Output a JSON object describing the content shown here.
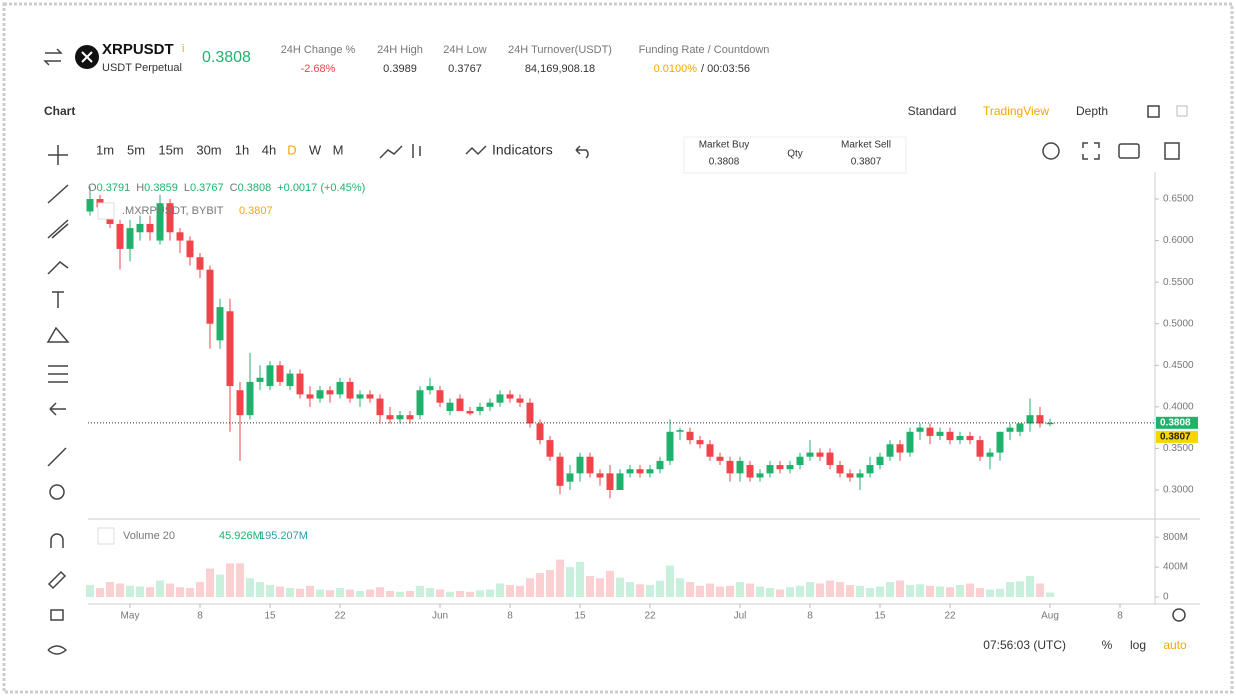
{
  "header": {
    "symbol": "XRPUSDT",
    "info": "i",
    "contract": "USDT Perpetual",
    "price": "0.3808",
    "stats": [
      {
        "label": "24H Change %",
        "value": "-2.68%"
      },
      {
        "label": "24H High",
        "value": "0.3989"
      },
      {
        "label": "24H Low",
        "value": "0.3767"
      },
      {
        "label": "24H Turnover(USDT)",
        "value": "84,169,908.18"
      }
    ],
    "funding": {
      "label": "Funding Rate / Countdown",
      "rate": "0.0100%",
      "countdown": "/ 00:03:56"
    }
  },
  "nav": {
    "section": "Chart",
    "tabs": [
      "Standard",
      "TradingView",
      "Depth"
    ]
  },
  "toolbar": {
    "intervals": [
      "1m",
      "5m",
      "15m",
      "30m",
      "1h",
      "4h",
      "D",
      "W",
      "M"
    ],
    "indicators": "Indicators"
  },
  "market": {
    "buy_label": "Market Buy",
    "buy": "0.3808",
    "qty": "Qty",
    "sell_label": "Market Sell",
    "sell": "0.3807"
  },
  "legend": {
    "ohlc": [
      {
        "label": "O",
        "value": "0.3791"
      },
      {
        "label": "H",
        "value": "0.3859"
      },
      {
        "label": "L",
        "value": "0.3767"
      },
      {
        "label": "C",
        "value": "0.3808"
      }
    ],
    "change": "+0.0017 (+0.45%)",
    "index": ".MXRPUSDT, BYBIT",
    "index_value": "0.3807"
  },
  "volume_legend": {
    "name": "Volume 20",
    "value1": "45.926M",
    "value2": "195.207M"
  },
  "footer": {
    "time": "07:56:03 (UTC)",
    "percent": "%",
    "log": "log",
    "auto": "auto"
  },
  "chart_data": {
    "type": "candlestick",
    "up_color": "#20b26c",
    "down_color": "#ef454a",
    "up_volume_color": "#c8f0dc",
    "down_volume_color": "#fbd0d2",
    "xlim": [
      -0.2,
      106.5
    ],
    "xticks": [
      {
        "value": 4,
        "label": "May"
      },
      {
        "value": 11,
        "label": "8"
      },
      {
        "value": 18,
        "label": "15"
      },
      {
        "value": 25,
        "label": "22"
      },
      {
        "value": 35,
        "label": "Jun"
      },
      {
        "value": 42,
        "label": "8"
      },
      {
        "value": 49,
        "label": "15"
      },
      {
        "value": 56,
        "label": "22"
      },
      {
        "value": 65,
        "label": "Jul"
      },
      {
        "value": 72,
        "label": "8"
      },
      {
        "value": 79,
        "label": "15"
      },
      {
        "value": 86,
        "label": "22"
      },
      {
        "value": 96,
        "label": "Aug"
      },
      {
        "value": 103,
        "label": "8"
      }
    ],
    "ylim": [
      0.2663,
      0.6825
    ],
    "yticks": [
      {
        "value": 0.3,
        "label": "0.3000"
      },
      {
        "value": 0.35,
        "label": "0.3500"
      },
      {
        "value": 0.4,
        "label": "0.4000"
      },
      {
        "value": 0.45,
        "label": "0.4500"
      },
      {
        "value": 0.5,
        "label": "0.5000"
      },
      {
        "value": 0.55,
        "label": "0.5500"
      },
      {
        "value": 0.6,
        "label": "0.6000"
      },
      {
        "value": 0.65,
        "label": "0.6500"
      }
    ],
    "last_price": {
      "value": 0.3808,
      "label": "0.3808"
    },
    "mark_price": {
      "value": 0.3807,
      "label": "0.3807"
    },
    "vlim": [
      0,
      1030
    ],
    "vticks": [
      0,
      {
        "value": 400,
        "label": "400M"
      },
      {
        "value": 800,
        "label": "800M"
      }
    ],
    "candles": [
      [
        0.635,
        0.665,
        0.63,
        0.65
      ],
      [
        0.65,
        0.655,
        0.63,
        0.64
      ],
      [
        0.64,
        0.645,
        0.615,
        0.62
      ],
      [
        0.62,
        0.625,
        0.565,
        0.59
      ],
      [
        0.59,
        0.625,
        0.575,
        0.615
      ],
      [
        0.61,
        0.63,
        0.6,
        0.62
      ],
      [
        0.62,
        0.63,
        0.6,
        0.61
      ],
      [
        0.6,
        0.655,
        0.595,
        0.645
      ],
      [
        0.645,
        0.65,
        0.6,
        0.61
      ],
      [
        0.61,
        0.615,
        0.585,
        0.6
      ],
      [
        0.6,
        0.605,
        0.57,
        0.58
      ],
      [
        0.58,
        0.585,
        0.555,
        0.565
      ],
      [
        0.565,
        0.57,
        0.47,
        0.5
      ],
      [
        0.48,
        0.53,
        0.47,
        0.52
      ],
      [
        0.515,
        0.53,
        0.37,
        0.425
      ],
      [
        0.42,
        0.43,
        0.335,
        0.39
      ],
      [
        0.39,
        0.465,
        0.385,
        0.43
      ],
      [
        0.43,
        0.45,
        0.42,
        0.435
      ],
      [
        0.425,
        0.455,
        0.42,
        0.45
      ],
      [
        0.45,
        0.455,
        0.425,
        0.43
      ],
      [
        0.425,
        0.445,
        0.42,
        0.44
      ],
      [
        0.44,
        0.445,
        0.41,
        0.415
      ],
      [
        0.415,
        0.425,
        0.4,
        0.41
      ],
      [
        0.41,
        0.425,
        0.405,
        0.42
      ],
      [
        0.42,
        0.425,
        0.405,
        0.415
      ],
      [
        0.415,
        0.435,
        0.41,
        0.43
      ],
      [
        0.43,
        0.435,
        0.405,
        0.41
      ],
      [
        0.41,
        0.42,
        0.4,
        0.415
      ],
      [
        0.415,
        0.42,
        0.405,
        0.41
      ],
      [
        0.41,
        0.415,
        0.38,
        0.39
      ],
      [
        0.39,
        0.4,
        0.38,
        0.385
      ],
      [
        0.385,
        0.395,
        0.38,
        0.39
      ],
      [
        0.39,
        0.395,
        0.38,
        0.385
      ],
      [
        0.39,
        0.425,
        0.385,
        0.42
      ],
      [
        0.42,
        0.435,
        0.415,
        0.425
      ],
      [
        0.42,
        0.425,
        0.4,
        0.405
      ],
      [
        0.395,
        0.41,
        0.39,
        0.405
      ],
      [
        0.41,
        0.415,
        0.395,
        0.395
      ],
      [
        0.395,
        0.4,
        0.39,
        0.392
      ],
      [
        0.395,
        0.405,
        0.39,
        0.4
      ],
      [
        0.4,
        0.41,
        0.395,
        0.405
      ],
      [
        0.405,
        0.42,
        0.4,
        0.415
      ],
      [
        0.415,
        0.42,
        0.405,
        0.41
      ],
      [
        0.41,
        0.415,
        0.4,
        0.405
      ],
      [
        0.405,
        0.41,
        0.375,
        0.38
      ],
      [
        0.38,
        0.385,
        0.355,
        0.36
      ],
      [
        0.36,
        0.365,
        0.335,
        0.34
      ],
      [
        0.34,
        0.345,
        0.295,
        0.305
      ],
      [
        0.31,
        0.33,
        0.3,
        0.32
      ],
      [
        0.32,
        0.345,
        0.31,
        0.34
      ],
      [
        0.34,
        0.345,
        0.315,
        0.32
      ],
      [
        0.32,
        0.325,
        0.305,
        0.315
      ],
      [
        0.32,
        0.33,
        0.29,
        0.3
      ],
      [
        0.3,
        0.325,
        0.3,
        0.32
      ],
      [
        0.32,
        0.33,
        0.315,
        0.325
      ],
      [
        0.325,
        0.33,
        0.315,
        0.32
      ],
      [
        0.32,
        0.33,
        0.315,
        0.325
      ],
      [
        0.325,
        0.34,
        0.32,
        0.335
      ],
      [
        0.335,
        0.385,
        0.33,
        0.37
      ],
      [
        0.37,
        0.375,
        0.36,
        0.372
      ],
      [
        0.37,
        0.375,
        0.355,
        0.36
      ],
      [
        0.36,
        0.365,
        0.35,
        0.355
      ],
      [
        0.355,
        0.36,
        0.335,
        0.34
      ],
      [
        0.34,
        0.345,
        0.33,
        0.335
      ],
      [
        0.335,
        0.34,
        0.31,
        0.32
      ],
      [
        0.32,
        0.34,
        0.31,
        0.335
      ],
      [
        0.33,
        0.335,
        0.31,
        0.315
      ],
      [
        0.315,
        0.325,
        0.31,
        0.32
      ],
      [
        0.32,
        0.335,
        0.315,
        0.33
      ],
      [
        0.33,
        0.335,
        0.32,
        0.325
      ],
      [
        0.325,
        0.335,
        0.32,
        0.33
      ],
      [
        0.33,
        0.345,
        0.325,
        0.34
      ],
      [
        0.34,
        0.36,
        0.335,
        0.345
      ],
      [
        0.345,
        0.35,
        0.335,
        0.34
      ],
      [
        0.345,
        0.35,
        0.325,
        0.33
      ],
      [
        0.33,
        0.335,
        0.315,
        0.32
      ],
      [
        0.32,
        0.325,
        0.31,
        0.315
      ],
      [
        0.315,
        0.325,
        0.3,
        0.32
      ],
      [
        0.32,
        0.34,
        0.315,
        0.33
      ],
      [
        0.33,
        0.345,
        0.325,
        0.34
      ],
      [
        0.34,
        0.36,
        0.335,
        0.355
      ],
      [
        0.355,
        0.36,
        0.335,
        0.345
      ],
      [
        0.345,
        0.375,
        0.34,
        0.37
      ],
      [
        0.37,
        0.38,
        0.36,
        0.375
      ],
      [
        0.375,
        0.38,
        0.355,
        0.365
      ],
      [
        0.365,
        0.375,
        0.36,
        0.37
      ],
      [
        0.37,
        0.375,
        0.355,
        0.36
      ],
      [
        0.36,
        0.37,
        0.355,
        0.365
      ],
      [
        0.365,
        0.37,
        0.355,
        0.36
      ],
      [
        0.36,
        0.365,
        0.335,
        0.34
      ],
      [
        0.34,
        0.35,
        0.325,
        0.345
      ],
      [
        0.345,
        0.37,
        0.335,
        0.37
      ],
      [
        0.37,
        0.38,
        0.36,
        0.375
      ],
      [
        0.37,
        0.38,
        0.365,
        0.38
      ],
      [
        0.38,
        0.41,
        0.37,
        0.39
      ],
      [
        0.39,
        0.4,
        0.375,
        0.38
      ],
      [
        0.3791,
        0.3859,
        0.3767,
        0.3808
      ]
    ],
    "volume": [
      160,
      120,
      200,
      180,
      150,
      140,
      130,
      220,
      180,
      130,
      120,
      200,
      380,
      300,
      450,
      450,
      250,
      200,
      160,
      140,
      120,
      110,
      150,
      100,
      90,
      120,
      100,
      80,
      100,
      130,
      80,
      70,
      80,
      150,
      120,
      100,
      70,
      80,
      70,
      90,
      100,
      180,
      160,
      150,
      250,
      320,
      360,
      500,
      400,
      470,
      280,
      250,
      350,
      260,
      200,
      170,
      160,
      220,
      420,
      250,
      200,
      150,
      180,
      140,
      150,
      200,
      180,
      140,
      120,
      100,
      130,
      150,
      200,
      180,
      220,
      200,
      160,
      150,
      120,
      140,
      200,
      220,
      160,
      170,
      150,
      140,
      130,
      160,
      180,
      120,
      100,
      110,
      200,
      210,
      280,
      180,
      60
    ]
  }
}
